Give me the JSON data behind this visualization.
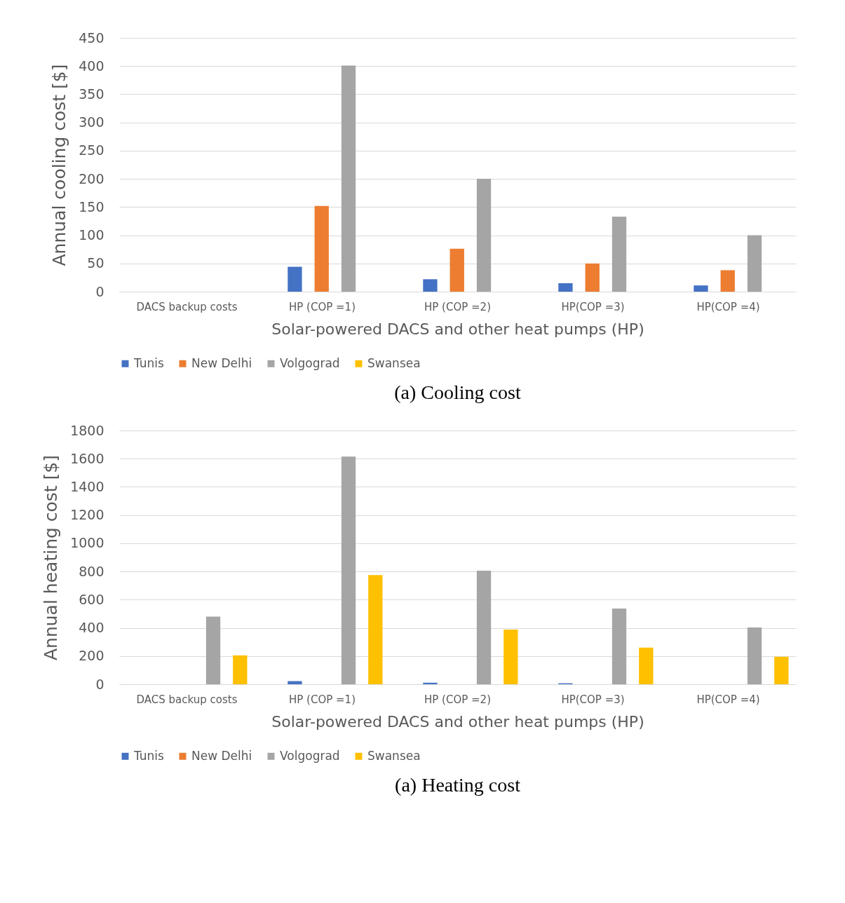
{
  "chart_data": [
    {
      "type": "bar",
      "xlabel": "Solar-powered DACS and other heat pumps (HP)",
      "ylabel": "Annual cooling cost [$]",
      "categories": [
        "DACS backup costs",
        "HP (COP =1)",
        "HP (COP =2)",
        "HP(COP =3)",
        "HP(COP =4)"
      ],
      "series": [
        {
          "name": "Tunis",
          "color": "#4472c4",
          "values": [
            0,
            44,
            22,
            15,
            11
          ]
        },
        {
          "name": "New Delhi",
          "color": "#ed7d31",
          "values": [
            0,
            152,
            76,
            50,
            38
          ]
        },
        {
          "name": "Volgograd",
          "color": "#a5a5a5",
          "values": [
            0,
            401,
            200,
            133,
            100
          ]
        },
        {
          "name": "Swansea",
          "color": "#ffc000",
          "values": [
            0,
            0,
            0,
            0,
            0
          ]
        }
      ],
      "ylim": [
        0,
        450
      ],
      "yticks": [
        0,
        50,
        100,
        150,
        200,
        250,
        300,
        350,
        400,
        450
      ],
      "grid": "y",
      "legend": "bottom",
      "annotations": [
        "(a)        Cooling cost"
      ]
    },
    {
      "type": "bar",
      "xlabel": "Solar-powered DACS and other heat pumps (HP)",
      "ylabel": "Annual heating cost [$]",
      "categories": [
        "DACS backup costs",
        "HP (COP =1)",
        "HP (COP =2)",
        "HP(COP =3)",
        "HP(COP =4)"
      ],
      "series": [
        {
          "name": "Tunis",
          "color": "#4472c4",
          "values": [
            0,
            22,
            11,
            7,
            0
          ]
        },
        {
          "name": "New Delhi",
          "color": "#ed7d31",
          "values": [
            0,
            0,
            0,
            0,
            0
          ]
        },
        {
          "name": "Volgograd",
          "color": "#a5a5a5",
          "values": [
            480,
            1615,
            805,
            537,
            403
          ]
        },
        {
          "name": "Swansea",
          "color": "#ffc000",
          "values": [
            205,
            775,
            388,
            260,
            195
          ]
        }
      ],
      "ylim": [
        0,
        1800
      ],
      "yticks": [
        0,
        200,
        400,
        600,
        800,
        {
          "value": 1000,
          "label": "1000"
        },
        {
          "value": 1200,
          "label": "1200"
        },
        {
          "value": 1400,
          "label": "1400"
        },
        {
          "value": 1600,
          "label": "1600"
        },
        {
          "value": 1800,
          "label": "1800"
        }
      ],
      "grid": "y",
      "legend": "bottom",
      "annotations": [
        "(a)        Heating cost"
      ]
    }
  ]
}
